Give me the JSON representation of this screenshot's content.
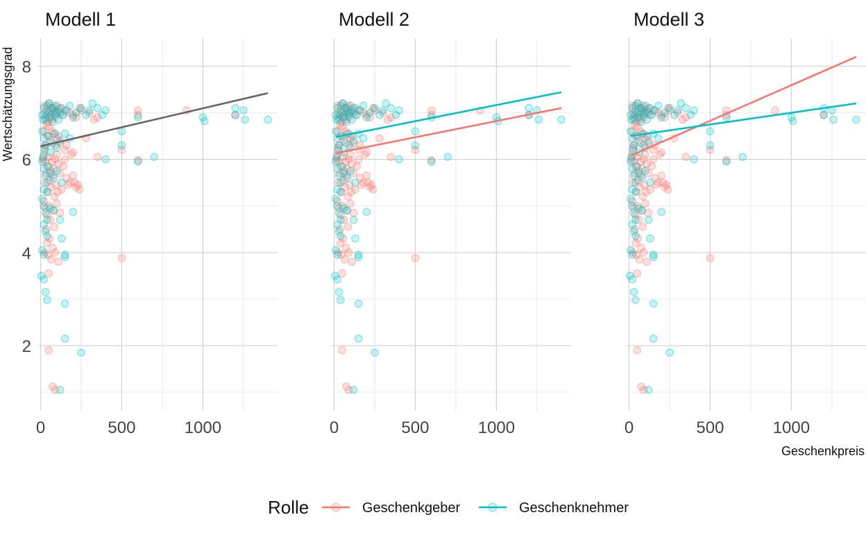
{
  "chart_data": {
    "type": "scatter",
    "xlabel": "Geschenkpreis",
    "ylabel": "Wertschätzungsgrad",
    "xlim": [
      -15,
      1460
    ],
    "ylim": [
      0.6,
      8.6
    ],
    "x_ticks": [
      0,
      500,
      1000
    ],
    "y_ticks": [
      2,
      4,
      6,
      8
    ],
    "grid": true,
    "colors": {
      "Geschenkgeber": "#F8766D",
      "Geschenknehmer": "#00BFC4",
      "pooled": "#666666"
    },
    "legend": {
      "title": "Rolle",
      "position": "bottom",
      "entries": [
        "Geschenkgeber",
        "Geschenknehmer"
      ]
    },
    "panels": [
      {
        "title": "Modell 1",
        "lines": [
          {
            "name": "",
            "color": "#666666",
            "x": [
              0,
              1400
            ],
            "y": [
              6.28,
              7.42
            ]
          }
        ]
      },
      {
        "title": "Modell 2",
        "lines": [
          {
            "name": "Geschenkgeber",
            "x": [
              10,
              1400
            ],
            "y": [
              6.13,
              7.1
            ]
          },
          {
            "name": "Geschenknehmer",
            "x": [
              10,
              1400
            ],
            "y": [
              6.48,
              7.44
            ]
          }
        ]
      },
      {
        "title": "Modell 3",
        "lines": [
          {
            "name": "Geschenkgeber",
            "x": [
              10,
              1400
            ],
            "y": [
              6.08,
              8.2
            ]
          },
          {
            "name": "Geschenknehmer",
            "x": [
              10,
              1400
            ],
            "y": [
              6.5,
              7.2
            ]
          }
        ]
      }
    ],
    "series": [
      {
        "name": "Geschenkgeber",
        "points": [
          [
            20,
            7.15
          ],
          [
            40,
            7.05
          ],
          [
            60,
            6.95
          ],
          [
            80,
            7.1
          ],
          [
            100,
            7.0
          ],
          [
            30,
            6.9
          ],
          [
            70,
            6.85
          ],
          [
            50,
            7.2
          ],
          [
            90,
            6.9
          ],
          [
            110,
            7.05
          ],
          [
            25,
            7.0
          ],
          [
            65,
            7.1
          ],
          [
            45,
            6.8
          ],
          [
            85,
            7.15
          ],
          [
            35,
            6.75
          ],
          [
            55,
            6.9
          ],
          [
            75,
            7.0
          ],
          [
            130,
            6.95
          ],
          [
            150,
            7.05
          ],
          [
            200,
            6.95
          ],
          [
            220,
            6.9
          ],
          [
            250,
            7.05
          ],
          [
            300,
            7.0
          ],
          [
            350,
            6.9
          ],
          [
            120,
            7.1
          ],
          [
            180,
            7.0
          ],
          [
            600,
            6.95
          ],
          [
            900,
            7.05
          ],
          [
            1200,
            6.95
          ],
          [
            600,
            7.05
          ],
          [
            240,
            7.1
          ],
          [
            330,
            6.85
          ],
          [
            20,
            6.6
          ],
          [
            40,
            6.5
          ],
          [
            60,
            6.4
          ],
          [
            80,
            6.55
          ],
          [
            30,
            6.3
          ],
          [
            100,
            6.45
          ],
          [
            120,
            6.35
          ],
          [
            150,
            6.2
          ],
          [
            50,
            6.7
          ],
          [
            70,
            6.6
          ],
          [
            200,
            6.15
          ],
          [
            25,
            6.25
          ],
          [
            90,
            6.3
          ],
          [
            110,
            6.5
          ],
          [
            280,
            6.45
          ],
          [
            160,
            6.3
          ],
          [
            20,
            6.1
          ],
          [
            30,
            5.95
          ],
          [
            40,
            5.85
          ],
          [
            50,
            6.05
          ],
          [
            60,
            5.75
          ],
          [
            70,
            5.95
          ],
          [
            80,
            5.8
          ],
          [
            90,
            6.0
          ],
          [
            100,
            6.1
          ],
          [
            110,
            5.9
          ],
          [
            120,
            5.7
          ],
          [
            140,
            5.85
          ],
          [
            160,
            5.6
          ],
          [
            180,
            5.5
          ],
          [
            200,
            5.65
          ],
          [
            220,
            5.4
          ],
          [
            240,
            5.35
          ],
          [
            15,
            6.0
          ],
          [
            35,
            5.7
          ],
          [
            55,
            5.55
          ],
          [
            75,
            5.65
          ],
          [
            95,
            5.45
          ],
          [
            130,
            5.35
          ],
          [
            170,
            5.45
          ],
          [
            210,
            5.5
          ],
          [
            45,
            5.3
          ],
          [
            65,
            5.4
          ],
          [
            85,
            5.2
          ],
          [
            25,
            5.5
          ],
          [
            105,
            5.3
          ],
          [
            350,
            6.05
          ],
          [
            500,
            6.2
          ],
          [
            600,
            5.98
          ],
          [
            230,
            5.45
          ],
          [
            190,
            6.1
          ],
          [
            150,
            6.0
          ],
          [
            20,
            5.1
          ],
          [
            30,
            4.95
          ],
          [
            40,
            4.8
          ],
          [
            50,
            5.0
          ],
          [
            60,
            4.7
          ],
          [
            80,
            4.9
          ],
          [
            100,
            5.05
          ],
          [
            120,
            4.85
          ],
          [
            35,
            4.5
          ],
          [
            55,
            4.3
          ],
          [
            75,
            4.1
          ],
          [
            25,
            4.0
          ],
          [
            45,
            3.95
          ],
          [
            65,
            3.85
          ],
          [
            90,
            4.0
          ],
          [
            110,
            3.8
          ],
          [
            50,
            3.55
          ],
          [
            40,
            4.2
          ],
          [
            500,
            3.88
          ],
          [
            85,
            4.55
          ],
          [
            50,
            1.9
          ],
          [
            75,
            1.12
          ],
          [
            90,
            1.05
          ]
        ]
      },
      {
        "name": "Geschenknehmer",
        "points": [
          [
            10,
            6.95
          ],
          [
            20,
            7.1
          ],
          [
            30,
            6.85
          ],
          [
            40,
            7.15
          ],
          [
            50,
            7.0
          ],
          [
            60,
            6.9
          ],
          [
            70,
            7.1
          ],
          [
            80,
            7.05
          ],
          [
            90,
            6.95
          ],
          [
            100,
            7.15
          ],
          [
            110,
            6.85
          ],
          [
            120,
            7.0
          ],
          [
            130,
            7.1
          ],
          [
            140,
            6.95
          ],
          [
            160,
            7.05
          ],
          [
            180,
            7.15
          ],
          [
            200,
            6.9
          ],
          [
            220,
            7.0
          ],
          [
            250,
            7.1
          ],
          [
            280,
            6.95
          ],
          [
            300,
            7.05
          ],
          [
            320,
            7.2
          ],
          [
            350,
            7.1
          ],
          [
            380,
            6.95
          ],
          [
            400,
            7.05
          ],
          [
            15,
            6.85
          ],
          [
            35,
            6.95
          ],
          [
            55,
            7.2
          ],
          [
            75,
            6.8
          ],
          [
            95,
            7.0
          ],
          [
            600,
            6.9
          ],
          [
            1000,
            6.9
          ],
          [
            1010,
            6.82
          ],
          [
            1200,
            7.1
          ],
          [
            1250,
            7.05
          ],
          [
            1400,
            6.85
          ],
          [
            1260,
            6.85
          ],
          [
            1200,
            6.95
          ],
          [
            10,
            6.6
          ],
          [
            20,
            6.45
          ],
          [
            30,
            6.3
          ],
          [
            50,
            6.5
          ],
          [
            70,
            6.35
          ],
          [
            90,
            6.55
          ],
          [
            120,
            6.4
          ],
          [
            150,
            6.55
          ],
          [
            180,
            6.45
          ],
          [
            500,
            6.6
          ],
          [
            500,
            6.3
          ],
          [
            25,
            6.2
          ],
          [
            60,
            6.15
          ],
          [
            100,
            6.25
          ],
          [
            10,
            5.95
          ],
          [
            20,
            5.8
          ],
          [
            30,
            5.65
          ],
          [
            40,
            5.5
          ],
          [
            50,
            5.85
          ],
          [
            60,
            5.7
          ],
          [
            80,
            5.6
          ],
          [
            100,
            5.75
          ],
          [
            130,
            5.5
          ],
          [
            20,
            5.35
          ],
          [
            40,
            5.3
          ],
          [
            400,
            6.0
          ],
          [
            600,
            5.95
          ],
          [
            700,
            6.05
          ],
          [
            15,
            6.05
          ],
          [
            10,
            5.15
          ],
          [
            20,
            5.0
          ],
          [
            30,
            4.85
          ],
          [
            40,
            4.7
          ],
          [
            60,
            4.95
          ],
          [
            80,
            4.9
          ],
          [
            120,
            4.7
          ],
          [
            200,
            4.87
          ],
          [
            20,
            4.6
          ],
          [
            30,
            4.45
          ],
          [
            40,
            4.35
          ],
          [
            10,
            4.05
          ],
          [
            20,
            3.95
          ],
          [
            150,
            3.95
          ],
          [
            150,
            3.9
          ],
          [
            130,
            4.3
          ],
          [
            5,
            3.5
          ],
          [
            20,
            3.42
          ],
          [
            30,
            3.15
          ],
          [
            40,
            2.98
          ],
          [
            150,
            2.9
          ],
          [
            150,
            2.15
          ],
          [
            250,
            1.85
          ],
          [
            120,
            1.05
          ]
        ]
      }
    ]
  }
}
